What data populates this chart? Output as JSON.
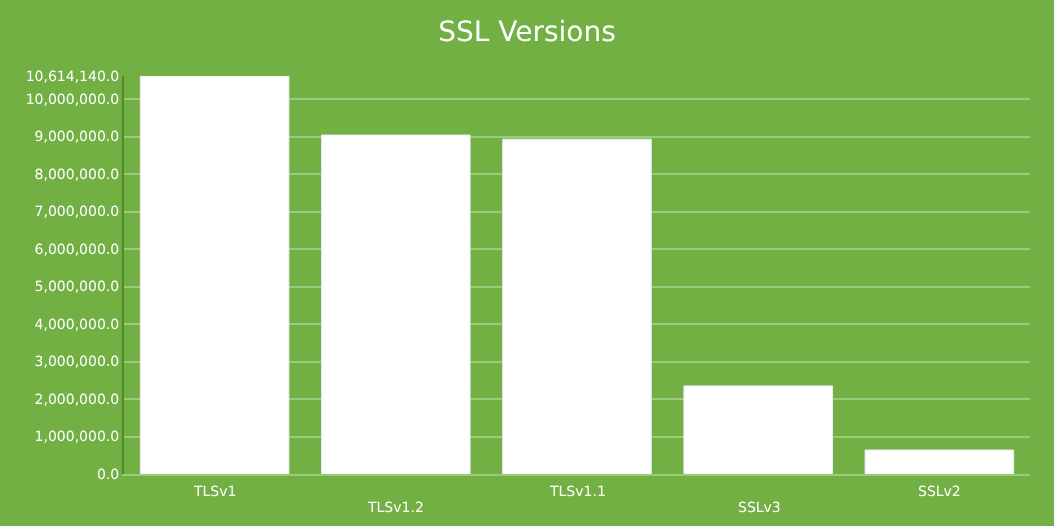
{
  "chart_data": {
    "type": "bar",
    "title": "SSL Versions",
    "categories": [
      "TLSv1",
      "TLSv1.2",
      "TLSv1.1",
      "SSLv3",
      "SSLv2"
    ],
    "values": [
      10614140,
      9040000,
      8930000,
      2350000,
      640000
    ],
    "color": "#ffffff",
    "ylim": [
      0,
      10614140
    ],
    "yticks": [
      {
        "value": 0,
        "label": "0.0"
      },
      {
        "value": 1000000,
        "label": "1,000,000.0"
      },
      {
        "value": 2000000,
        "label": "2,000,000.0"
      },
      {
        "value": 3000000,
        "label": "3,000,000.0"
      },
      {
        "value": 4000000,
        "label": "4,000,000.0"
      },
      {
        "value": 5000000,
        "label": "5,000,000.0"
      },
      {
        "value": 6000000,
        "label": "6,000,000.0"
      },
      {
        "value": 7000000,
        "label": "7,000,000.0"
      },
      {
        "value": 8000000,
        "label": "8,000,000.0"
      },
      {
        "value": 9000000,
        "label": "9,000,000.0"
      },
      {
        "value": 10000000,
        "label": "10,000,000.0"
      },
      {
        "value": 10614140,
        "label": "10,614,140.0"
      }
    ],
    "grid": "y"
  }
}
